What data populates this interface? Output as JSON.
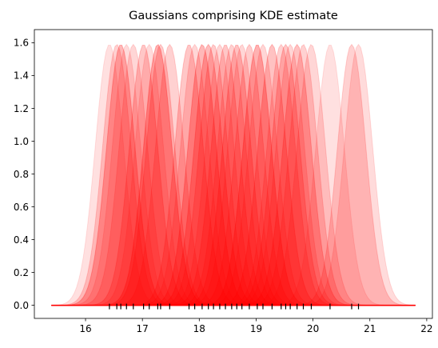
{
  "chart_data": {
    "type": "area",
    "title": "Gaussians comprising KDE estimate",
    "xlabel": "",
    "ylabel": "",
    "xlim": [
      15.1,
      22.1
    ],
    "ylim": [
      -0.08,
      1.68
    ],
    "x_ticks": [
      16,
      17,
      18,
      19,
      20,
      21,
      22
    ],
    "y_ticks": [
      0.0,
      0.2,
      0.4,
      0.6,
      0.8,
      1.0,
      1.2,
      1.4,
      1.6
    ],
    "x_tick_labels": [
      "16",
      "17",
      "18",
      "19",
      "20",
      "21",
      "22"
    ],
    "y_tick_labels": [
      "0.0",
      "0.2",
      "0.4",
      "0.6",
      "0.8",
      "1.0",
      "1.2",
      "1.4",
      "1.6"
    ],
    "kernel_peak": 1.59,
    "kernel_std": 0.25,
    "baseline_range": [
      15.4,
      21.8
    ],
    "grid": false,
    "legend": "none",
    "colors": {
      "kernel_fill": "#ff0000",
      "baseline": "#ff0000",
      "rug": "#000000",
      "axes": "#000000"
    },
    "samples": [
      16.42,
      16.55,
      16.62,
      16.72,
      16.84,
      17.02,
      17.12,
      17.27,
      17.32,
      17.48,
      17.82,
      17.92,
      18.05,
      18.16,
      18.25,
      18.36,
      18.46,
      18.57,
      18.66,
      18.75,
      18.88,
      19.02,
      19.12,
      19.28,
      19.44,
      19.52,
      19.6,
      19.72,
      19.83,
      19.97,
      20.3,
      20.68,
      20.8
    ],
    "sample_alphas": [
      0.12,
      0.18,
      0.28,
      0.14,
      0.16,
      0.22,
      0.14,
      0.3,
      0.2,
      0.18,
      0.22,
      0.16,
      0.28,
      0.26,
      0.2,
      0.16,
      0.22,
      0.18,
      0.24,
      0.16,
      0.2,
      0.3,
      0.16,
      0.24,
      0.18,
      0.22,
      0.16,
      0.24,
      0.18,
      0.16,
      0.12,
      0.18,
      0.14
    ]
  }
}
